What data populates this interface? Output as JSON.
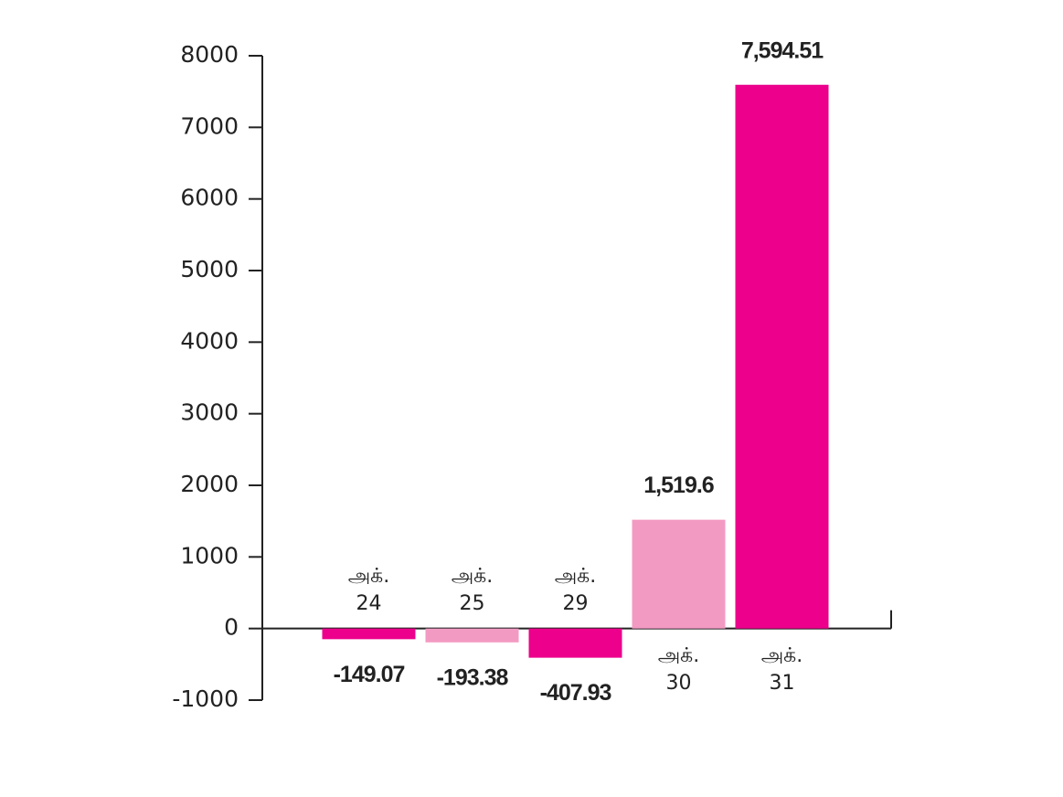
{
  "chart_data": {
    "type": "bar",
    "categories": [
      "அக். 24",
      "அக். 25",
      "அக். 29",
      "அக். 30",
      "அக். 31"
    ],
    "values": [
      -149.07,
      -193.38,
      -407.93,
      1519.6,
      7594.51
    ],
    "value_labels": [
      "-149.07",
      "-193.38",
      "-407.93",
      "1,519.6",
      "7,594.51"
    ],
    "colors": [
      "#ec008c",
      "#f39ac3",
      "#ec008c",
      "#f39ac3",
      "#ec008c"
    ],
    "ylim": [
      -1000,
      8000
    ],
    "yticks": [
      -1000,
      0,
      1000,
      2000,
      3000,
      4000,
      5000,
      6000,
      7000,
      8000
    ]
  }
}
